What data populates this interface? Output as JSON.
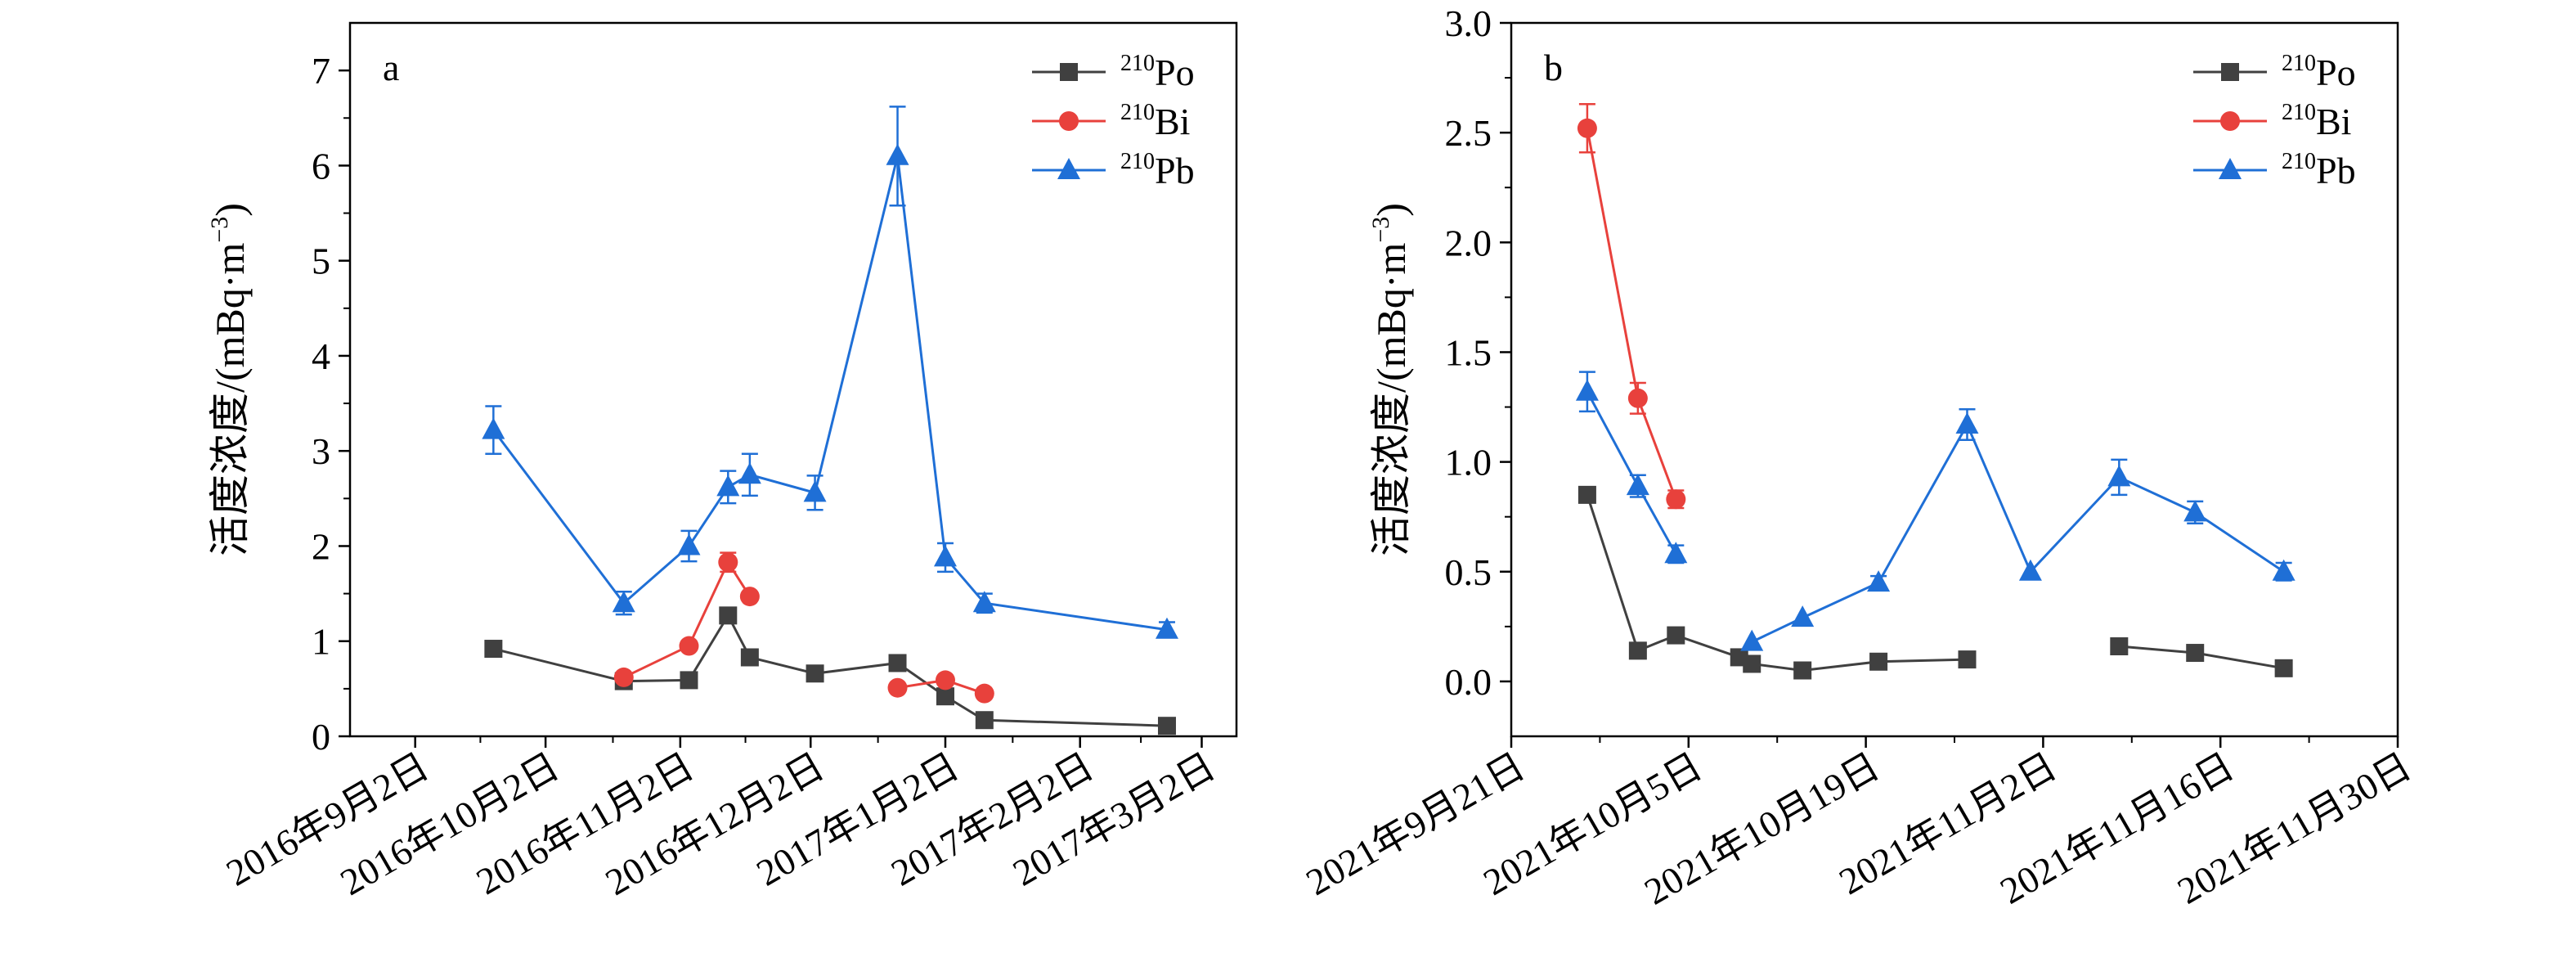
{
  "chart_data": [
    {
      "type": "line",
      "panel_label": "a",
      "ylabel": "活度浓度/(mBq·m⁻³)",
      "ylabel_parts": {
        "main": "活度浓度/(mBq·m",
        "sup": "−3",
        "close": ")"
      },
      "ylim": [
        0,
        7.5
      ],
      "yticks": [
        0,
        1,
        2,
        3,
        4,
        5,
        6,
        7
      ],
      "ytick_labels": [
        "0",
        "1",
        "2",
        "3",
        "4",
        "5",
        "6",
        "7"
      ],
      "xlim": [
        "2016-08-18",
        "2017-03-10"
      ],
      "xticks": [
        "2016-09-02",
        "2016-10-02",
        "2016-11-02",
        "2016-12-02",
        "2017-01-02",
        "2017-02-02",
        "2017-03-02"
      ],
      "xtick_labels": [
        "2016年9月2日",
        "2016年10月2日",
        "2016年11月2日",
        "2016年12月2日",
        "2017年1月2日",
        "2017年2月2日",
        "2017年3月2日"
      ],
      "grid": false,
      "legend_position": "top-right",
      "series": [
        {
          "name": "210Po",
          "name_sup": "210",
          "name_base": "Po",
          "color": "#404040",
          "marker": "square",
          "points": [
            {
              "x": "2016-09-20",
              "y": 0.92,
              "err": 0
            },
            {
              "x": "2016-10-20",
              "y": 0.58,
              "err": 0
            },
            {
              "x": "2016-11-04",
              "y": 0.59,
              "err": 0
            },
            {
              "x": "2016-11-13",
              "y": 1.27,
              "err": 0.07
            },
            {
              "x": "2016-11-18",
              "y": 0.83,
              "err": 0
            },
            {
              "x": "2016-12-03",
              "y": 0.66,
              "err": 0
            },
            {
              "x": "2016-12-22",
              "y": 0.77,
              "err": 0
            },
            {
              "x": "2017-01-02",
              "y": 0.42,
              "err": 0
            },
            {
              "x": "2017-01-11",
              "y": 0.17,
              "err": 0
            },
            {
              "x": "2017-02-22",
              "y": 0.11,
              "err": 0
            }
          ]
        },
        {
          "name": "210Bi",
          "name_sup": "210",
          "name_base": "Bi",
          "color": "#e8413c",
          "marker": "circle",
          "segments": [
            [
              {
                "x": "2016-10-20",
                "y": 0.62,
                "err": 0
              },
              {
                "x": "2016-11-04",
                "y": 0.95,
                "err": 0
              },
              {
                "x": "2016-11-13",
                "y": 1.83,
                "err": 0.1
              },
              {
                "x": "2016-11-18",
                "y": 1.47,
                "err": 0
              }
            ],
            [
              {
                "x": "2016-12-22",
                "y": 0.51,
                "err": 0
              },
              {
                "x": "2017-01-02",
                "y": 0.59,
                "err": 0
              },
              {
                "x": "2017-01-11",
                "y": 0.45,
                "err": 0
              }
            ]
          ]
        },
        {
          "name": "210Pb",
          "name_sup": "210",
          "name_base": "Pb",
          "color": "#1f6fd6",
          "marker": "triangle",
          "points": [
            {
              "x": "2016-09-20",
              "y": 3.22,
              "err": 0.25
            },
            {
              "x": "2016-10-20",
              "y": 1.4,
              "err": 0.12
            },
            {
              "x": "2016-11-04",
              "y": 2.0,
              "err": 0.16
            },
            {
              "x": "2016-11-13",
              "y": 2.62,
              "err": 0.17
            },
            {
              "x": "2016-11-18",
              "y": 2.75,
              "err": 0.22
            },
            {
              "x": "2016-12-03",
              "y": 2.56,
              "err": 0.18
            },
            {
              "x": "2016-12-22",
              "y": 6.1,
              "err": 0.52
            },
            {
              "x": "2017-01-02",
              "y": 1.88,
              "err": 0.15
            },
            {
              "x": "2017-01-11",
              "y": 1.4,
              "err": 0.1
            },
            {
              "x": "2017-02-22",
              "y": 1.12,
              "err": 0.08
            }
          ]
        }
      ]
    },
    {
      "type": "line",
      "panel_label": "b",
      "ylabel": "活度浓度/(mBq·m⁻³)",
      "ylabel_parts": {
        "main": "活度浓度/(mBq·m",
        "sup": "−3",
        "close": ")"
      },
      "ylim": [
        -0.25,
        3.0
      ],
      "yticks": [
        0,
        0.5,
        1.0,
        1.5,
        2.0,
        2.5,
        3.0
      ],
      "ytick_labels": [
        "0.0",
        "0.5",
        "1.0",
        "1.5",
        "2.0",
        "2.5",
        "3.0"
      ],
      "xlim": [
        "2021-09-21",
        "2021-11-30"
      ],
      "xticks": [
        "2021-09-21",
        "2021-10-05",
        "2021-10-19",
        "2021-11-02",
        "2021-11-16",
        "2021-11-30"
      ],
      "xtick_labels": [
        "2021年9月21日",
        "2021年10月5日",
        "2021年10月19日",
        "2021年11月2日",
        "2021年11月16日",
        "2021年11月30日"
      ],
      "grid": false,
      "legend_position": "top-right",
      "series": [
        {
          "name": "210Po",
          "name_sup": "210",
          "name_base": "Po",
          "color": "#404040",
          "marker": "square",
          "segments": [
            [
              {
                "x": "2021-09-27",
                "y": 0.85,
                "err": 0
              },
              {
                "x": "2021-10-01",
                "y": 0.14,
                "err": 0
              },
              {
                "x": "2021-10-04",
                "y": 0.21,
                "err": 0
              },
              {
                "x": "2021-10-09",
                "y": 0.11,
                "err": 0
              },
              {
                "x": "2021-10-10",
                "y": 0.08,
                "err": 0
              },
              {
                "x": "2021-10-14",
                "y": 0.05,
                "err": 0
              },
              {
                "x": "2021-10-20",
                "y": 0.09,
                "err": 0
              },
              {
                "x": "2021-10-27",
                "y": 0.1,
                "err": 0
              }
            ],
            [
              {
                "x": "2021-11-08",
                "y": 0.16,
                "err": 0
              },
              {
                "x": "2021-11-14",
                "y": 0.13,
                "err": 0
              },
              {
                "x": "2021-11-21",
                "y": 0.06,
                "err": 0
              }
            ]
          ]
        },
        {
          "name": "210Bi",
          "name_sup": "210",
          "name_base": "Bi",
          "color": "#e8413c",
          "marker": "circle",
          "points": [
            {
              "x": "2021-09-27",
              "y": 2.52,
              "err": 0.11
            },
            {
              "x": "2021-10-01",
              "y": 1.29,
              "err": 0.07
            },
            {
              "x": "2021-10-04",
              "y": 0.83,
              "err": 0.04
            }
          ]
        },
        {
          "name": "210Pb",
          "name_sup": "210",
          "name_base": "Pb",
          "color": "#1f6fd6",
          "marker": "triangle",
          "segments": [
            [
              {
                "x": "2021-09-27",
                "y": 1.32,
                "err": 0.09
              },
              {
                "x": "2021-10-01",
                "y": 0.89,
                "err": 0.05
              },
              {
                "x": "2021-10-04",
                "y": 0.58,
                "err": 0.04
              }
            ],
            [
              {
                "x": "2021-10-10",
                "y": 0.18,
                "err": 0
              },
              {
                "x": "2021-10-14",
                "y": 0.29,
                "err": 0
              },
              {
                "x": "2021-10-20",
                "y": 0.45,
                "err": 0.03
              },
              {
                "x": "2021-10-27",
                "y": 1.17,
                "err": 0.07
              },
              {
                "x": "2021-11-01",
                "y": 0.5,
                "err": 0
              },
              {
                "x": "2021-11-08",
                "y": 0.93,
                "err": 0.08
              },
              {
                "x": "2021-11-14",
                "y": 0.77,
                "err": 0.05
              },
              {
                "x": "2021-11-21",
                "y": 0.5,
                "err": 0.04
              }
            ]
          ]
        }
      ]
    }
  ]
}
